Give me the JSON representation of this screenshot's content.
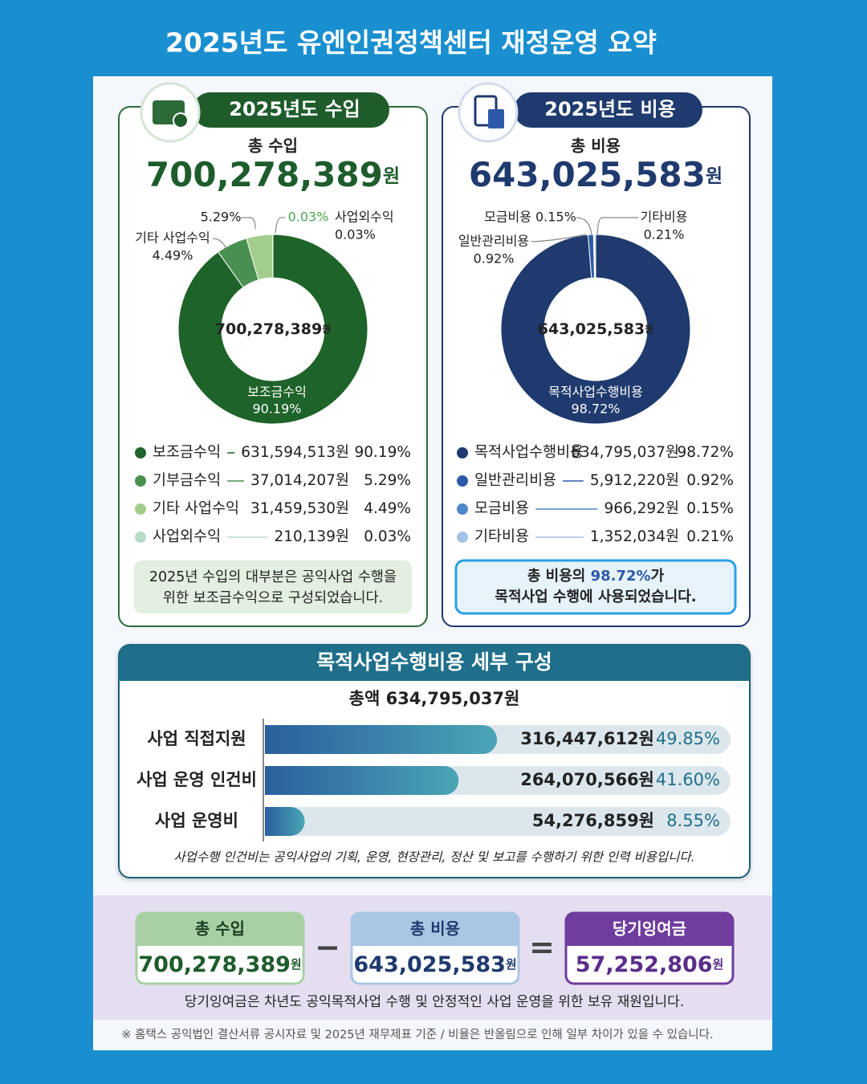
{
  "title": "2025년도 유엔인권정책센터 재정운영 요약",
  "income": {
    "heading": "2025년도 수입",
    "total_label": "총 수입",
    "total": "700,278,389",
    "unit": "원",
    "items": [
      {
        "name": "보조금수익",
        "amount": "631,594,513원",
        "pct": 90.19,
        "pct_label": "90.19%",
        "color": "#1e6329"
      },
      {
        "name": "기부금수익",
        "amount": "37,014,207원",
        "pct": 5.29,
        "pct_label": "5.29%",
        "color": "#4a8f52"
      },
      {
        "name": "기타 사업수익",
        "amount": "31,459,530원",
        "pct": 4.49,
        "pct_label": "4.49%",
        "color": "#a3cd8d"
      },
      {
        "name": "사업외수익",
        "amount": "210,139원",
        "pct": 0.03,
        "pct_label": "0.03%",
        "color": "#b5dcc8"
      }
    ],
    "note": [
      "2025년 수입의 대부분은 공익사업 수행을",
      "위한 보조금수익으로 구성되었습니다."
    ]
  },
  "expense": {
    "heading": "2025년도 비용",
    "total_label": "총 비용",
    "total": "643,025,583",
    "unit": "원",
    "items": [
      {
        "name": "목적사업수행비용",
        "amount": "634,795,037원",
        "pct": 98.72,
        "pct_label": "98.72%",
        "color": "#1f3a6e"
      },
      {
        "name": "일반관리비용",
        "amount": "5,912,220원",
        "pct": 0.92,
        "pct_label": "0.92%",
        "color": "#2d5aa8"
      },
      {
        "name": "모금비용",
        "amount": "966,292원",
        "pct": 0.15,
        "pct_label": "0.15%",
        "color": "#4f86c8"
      },
      {
        "name": "기타비용",
        "amount": "1,352,034원",
        "pct": 0.21,
        "pct_label": "0.21%",
        "color": "#a4c2e6"
      }
    ],
    "note": {
      "before": "총 비용의 ",
      "highlight": "98.72%",
      "after": "가",
      "line2": "목적사업 수행에 사용되었습니다."
    }
  },
  "detail": {
    "title": "목적사업수행비용 세부 구성",
    "total": "총액 634,795,037원",
    "xlim": [
      0,
      100
    ],
    "bars": [
      {
        "name": "사업 직접지원",
        "amount": "316,447,612원",
        "pct": 49.85,
        "pct_label": "49.85%"
      },
      {
        "name": "사업 운영 인건비",
        "amount": "264,070,566원",
        "pct": 41.6,
        "pct_label": "41.60%"
      },
      {
        "name": "사업 운영비",
        "amount": "54,276,859원",
        "pct": 8.55,
        "pct_label": "8.55%"
      }
    ],
    "note": "사업수행 인건비는 공익사업의 기획, 운영, 현장관리, 정산 및 보고를 수행하기 위한 인력 비용입니다."
  },
  "summary": {
    "boxes": [
      {
        "label": "총 수입",
        "amount": "700,278,389",
        "unit": "원"
      },
      {
        "label": "총 비용",
        "amount": "643,025,583",
        "unit": "원"
      },
      {
        "label": "당기잉여금",
        "amount": "57,252,806",
        "unit": "원"
      }
    ],
    "operators": [
      "−",
      "="
    ],
    "note": "당기잉여금은 차년도 공익목적사업 수행 및 안정적인 사업 운영을 위한 보유 재원입니다."
  },
  "footnote": "※ 홈택스 공익법인 결산서류 공시자료 및 2025년 재무제표 기준 / 비율은 반올림으로 인해 일부 차이가 있을 수 있습니다."
}
